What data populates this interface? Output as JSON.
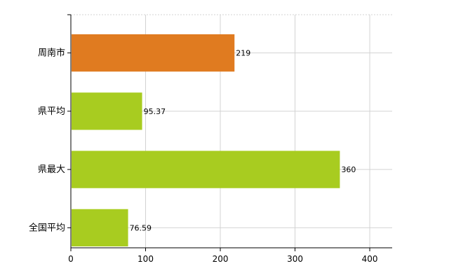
{
  "chart_data": {
    "type": "bar",
    "orientation": "horizontal",
    "categories": [
      "周南市",
      "県平均",
      "県最大",
      "全国平均"
    ],
    "values": [
      219,
      95.37,
      360,
      76.59
    ],
    "value_labels": [
      "219",
      "95.37",
      "360",
      "76.59"
    ],
    "bar_colors": [
      "#e07b20",
      "#a8cc20",
      "#a8cc20",
      "#a8cc20"
    ],
    "title": "",
    "xlabel": "",
    "ylabel": "",
    "xlim": [
      0,
      430
    ],
    "x_ticks": [
      0,
      100,
      200,
      300,
      400
    ],
    "x_tick_labels": [
      "0",
      "100",
      "200",
      "300",
      "400"
    ],
    "grid": true,
    "legend": "none"
  },
  "colors": {
    "highlight": "#e07b20",
    "default": "#a8cc20",
    "grid": "#d3d3d3"
  }
}
